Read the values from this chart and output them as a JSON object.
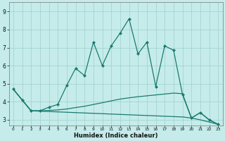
{
  "title": "",
  "xlabel": "Humidex (Indice chaleur)",
  "background_color": "#c5ecea",
  "grid_color": "#9ecfcc",
  "line_color": "#1a7a70",
  "xlim": [
    -0.5,
    23.5
  ],
  "ylim": [
    2.7,
    9.5
  ],
  "xticks": [
    0,
    1,
    2,
    3,
    4,
    5,
    6,
    7,
    8,
    9,
    10,
    11,
    12,
    13,
    14,
    15,
    16,
    17,
    18,
    19,
    20,
    21,
    22,
    23
  ],
  "yticks": [
    3,
    4,
    5,
    6,
    7,
    8,
    9
  ],
  "series1_x": [
    0,
    1,
    2,
    3,
    4,
    5,
    6,
    7,
    8,
    9,
    10,
    11,
    12,
    13,
    14,
    15,
    16,
    17,
    18,
    19,
    20,
    21,
    22,
    23
  ],
  "series1_y": [
    4.7,
    4.1,
    3.5,
    3.5,
    3.7,
    3.85,
    4.9,
    5.85,
    5.45,
    7.3,
    6.0,
    7.1,
    7.8,
    8.6,
    6.65,
    7.3,
    4.85,
    7.1,
    6.85,
    4.4,
    3.1,
    3.4,
    3.0,
    2.75
  ],
  "series2_x": [
    0,
    1,
    2,
    3,
    4,
    5,
    6,
    7,
    8,
    9,
    10,
    11,
    12,
    13,
    14,
    15,
    16,
    17,
    18,
    19,
    20,
    21,
    22,
    23
  ],
  "series2_y": [
    4.7,
    4.1,
    3.5,
    3.5,
    3.52,
    3.55,
    3.6,
    3.68,
    3.75,
    3.85,
    3.95,
    4.05,
    4.15,
    4.22,
    4.28,
    4.33,
    4.38,
    4.43,
    4.48,
    4.45,
    3.1,
    3.4,
    3.0,
    2.75
  ],
  "series3_x": [
    0,
    1,
    2,
    3,
    4,
    5,
    6,
    7,
    8,
    9,
    10,
    11,
    12,
    13,
    14,
    15,
    16,
    17,
    18,
    19,
    20,
    21,
    22,
    23
  ],
  "series3_y": [
    4.7,
    4.1,
    3.5,
    3.48,
    3.46,
    3.44,
    3.42,
    3.4,
    3.38,
    3.36,
    3.34,
    3.32,
    3.3,
    3.28,
    3.26,
    3.24,
    3.22,
    3.2,
    3.18,
    3.16,
    3.1,
    3.0,
    2.88,
    2.75
  ],
  "markersize": 2.5,
  "linewidth": 0.9
}
